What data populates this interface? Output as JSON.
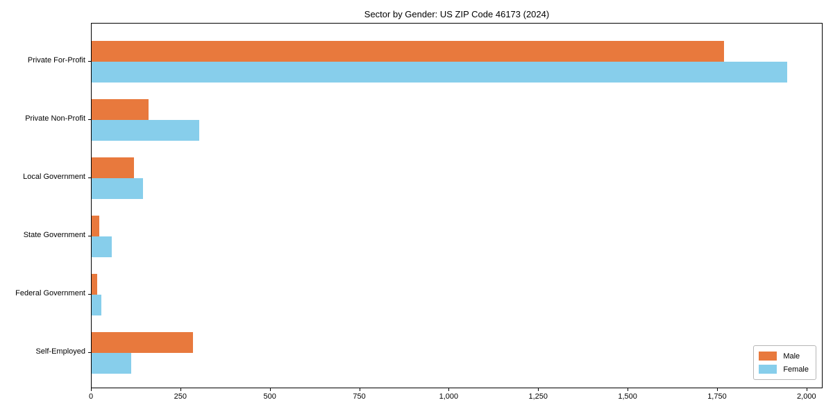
{
  "title": "Sector by Gender: US ZIP Code 46173 (2024)",
  "chart_data": {
    "type": "bar",
    "orientation": "horizontal",
    "title": "Sector by Gender: US ZIP Code 46173 (2024)",
    "xlabel": "",
    "ylabel": "",
    "grid": false,
    "legend_position": "lower right",
    "xlim": [
      0,
      2045
    ],
    "xticks": [
      0,
      250,
      500,
      750,
      1000,
      1250,
      1500,
      1750,
      2000
    ],
    "xtick_labels": [
      "0",
      "250",
      "500",
      "750",
      "1,000",
      "1,250",
      "1,500",
      "1,750",
      "2,000"
    ],
    "categories": [
      "Private For-Profit",
      "Private Non-Profit",
      "Local Government",
      "State Government",
      "Federal Government",
      "Self-Employed"
    ],
    "series": [
      {
        "name": "Male",
        "color": "#e8793d",
        "values": [
          1771,
          160,
          118,
          21,
          15,
          283
        ]
      },
      {
        "name": "Female",
        "color": "#87ceeb",
        "values": [
          1948,
          302,
          144,
          57,
          27,
          111
        ]
      }
    ]
  },
  "colors": {
    "male": "#e8793d",
    "female": "#87ceeb",
    "axis": "#000000",
    "legend_border": "#b6b6b6"
  }
}
